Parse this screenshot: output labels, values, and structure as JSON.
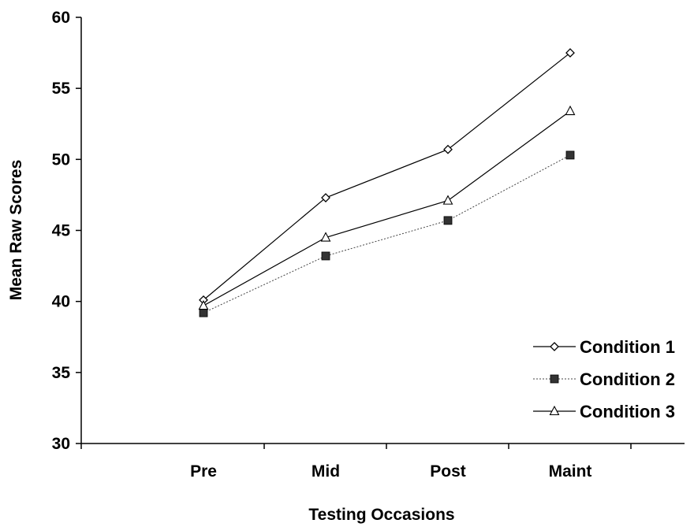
{
  "chart_data": {
    "type": "line",
    "categories": [
      "Pre",
      "Mid",
      "Post",
      "Maint"
    ],
    "xlabel": "Testing Occasions",
    "ylabel": "Mean Raw Scores",
    "ylim": [
      30,
      60
    ],
    "yticks": [
      "30",
      "35",
      "40",
      "45",
      "50",
      "55",
      "60"
    ],
    "grid": false,
    "legend_position": "bottom-right",
    "series": [
      {
        "name": "Condition 1",
        "values": [
          40.1,
          47.3,
          50.7,
          57.5
        ],
        "marker": "diamond-open",
        "line": "solid"
      },
      {
        "name": "Condition 2",
        "values": [
          39.2,
          43.2,
          45.7,
          50.3
        ],
        "marker": "square-filled",
        "line": "dotted"
      },
      {
        "name": "Condition 3",
        "values": [
          39.7,
          44.5,
          47.1,
          53.4
        ],
        "marker": "triangle-open",
        "line": "solid"
      }
    ]
  }
}
